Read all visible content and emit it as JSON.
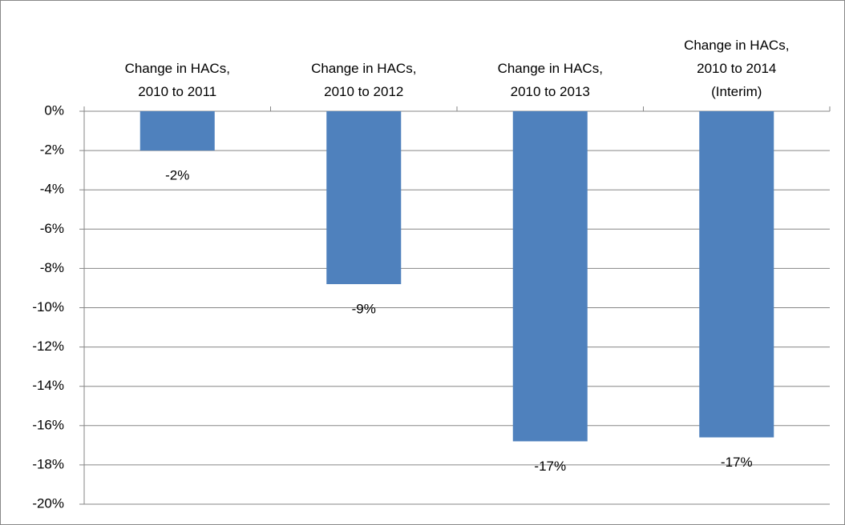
{
  "chart_data": {
    "type": "bar",
    "categories": [
      "Change in HACs,\n2010 to 2011",
      "Change in HACs,\n2010 to 2012",
      "Change in HACs,\n2010 to 2013",
      "Change in HACs,\n2010 to 2014\n(Interim)"
    ],
    "values": [
      -2,
      -8.8,
      -16.8,
      -16.6
    ],
    "value_labels": [
      "-2%",
      "-9%",
      "-17%",
      "-17%"
    ],
    "color": "#4f81bd",
    "ylim": [
      -20,
      0
    ],
    "yticks": [
      {
        "value": 0,
        "label": "0%"
      },
      {
        "value": -2,
        "label": "-2%"
      },
      {
        "value": -4,
        "label": "-4%"
      },
      {
        "value": -6,
        "label": "-6%"
      },
      {
        "value": -8,
        "label": "-8%"
      },
      {
        "value": -10,
        "label": "-10%"
      },
      {
        "value": -12,
        "label": "-12%"
      },
      {
        "value": -14,
        "label": "-14%"
      },
      {
        "value": -16,
        "label": "-16%"
      },
      {
        "value": -18,
        "label": "-18%"
      },
      {
        "value": -20,
        "label": "-20%"
      }
    ],
    "grid": true
  }
}
